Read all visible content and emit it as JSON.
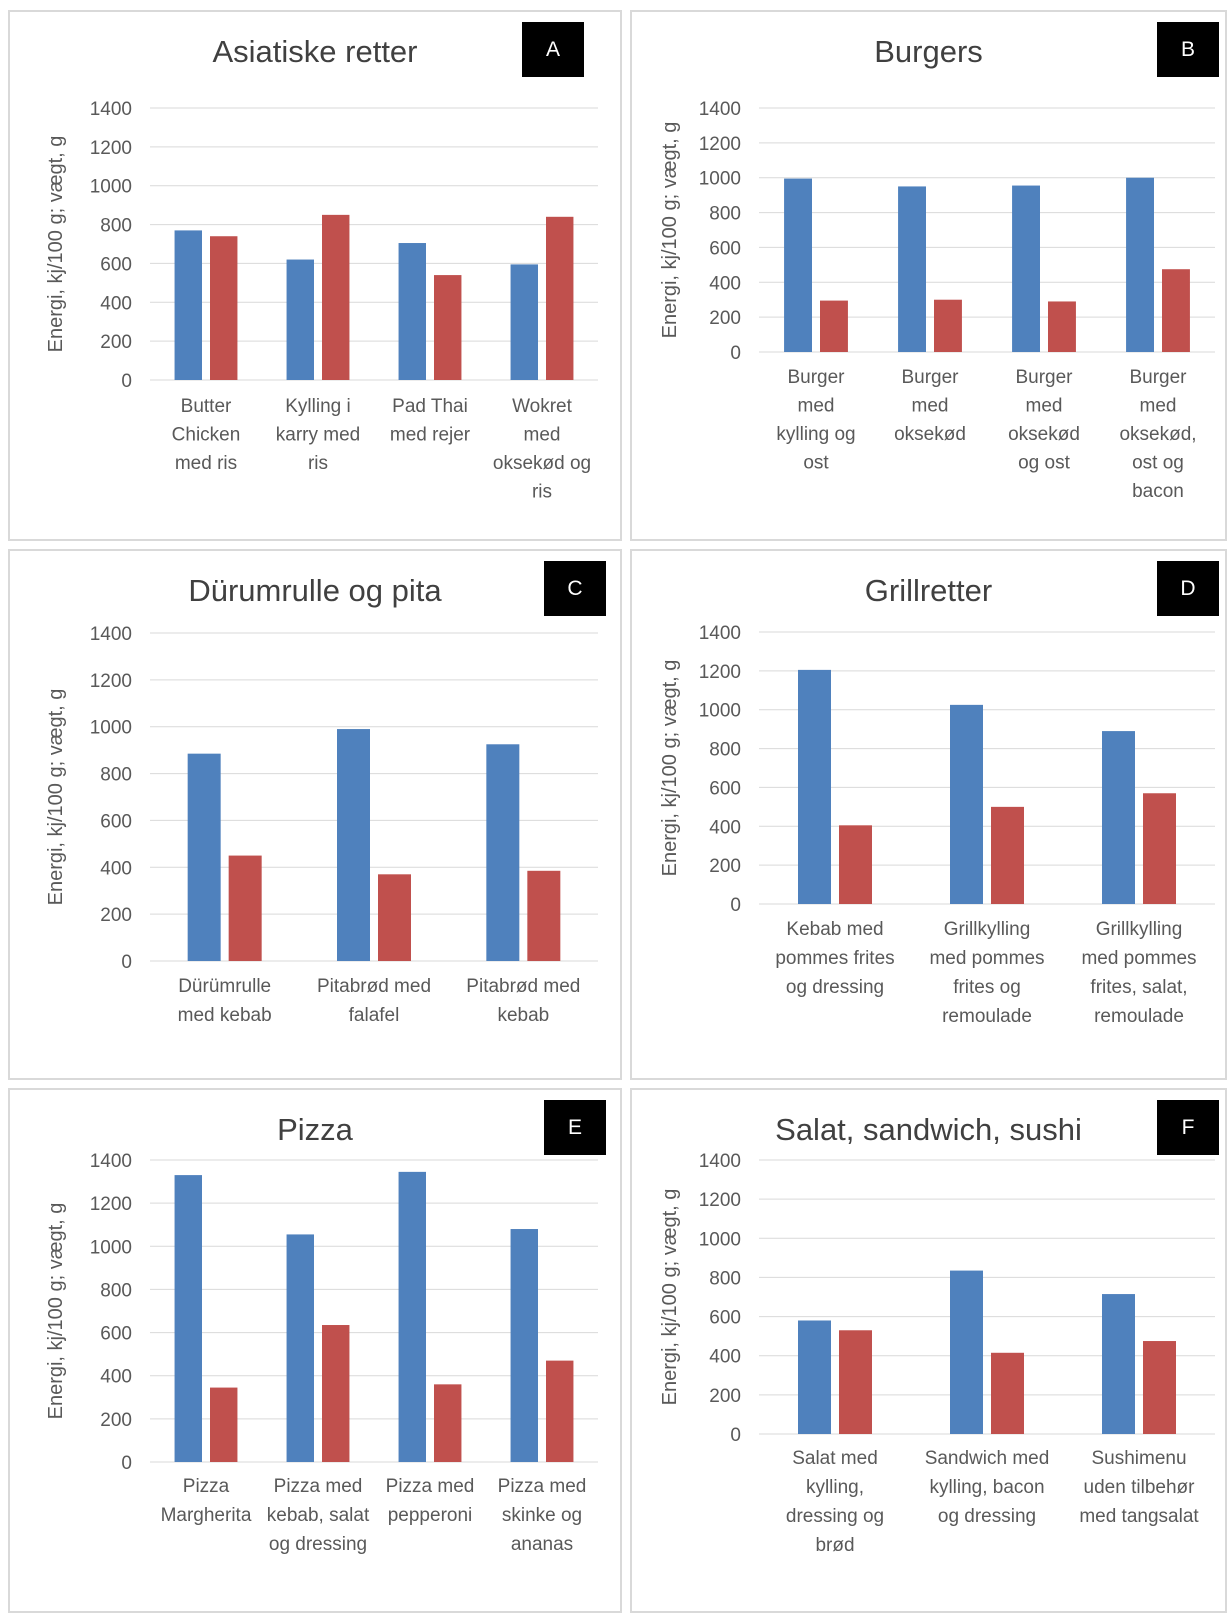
{
  "colors": {
    "series1": "#4f81bd",
    "series2": "#c0504d",
    "grid": "#d9d9d9",
    "text": "#595959",
    "title": "#404040"
  },
  "chart_data": [
    {
      "type": "bar",
      "title": "Asiatiske retter",
      "panel_label": "A",
      "ylabel": "Energi, kj/100 g; vægt, g",
      "ylim": [
        0,
        1400
      ],
      "yticks": [
        0,
        200,
        400,
        600,
        800,
        1000,
        1200,
        1400
      ],
      "grid": true,
      "categories": [
        [
          "Butter",
          "Chicken",
          "med ris"
        ],
        [
          "Kylling i",
          "karry med",
          "ris"
        ],
        [
          "Pad Thai",
          "med rejer"
        ],
        [
          "Wokret",
          "med",
          "oksekød og",
          "ris"
        ]
      ],
      "series": [
        {
          "values": [
            770,
            620,
            705,
            595
          ]
        },
        {
          "values": [
            740,
            850,
            540,
            840
          ]
        }
      ]
    },
    {
      "type": "bar",
      "title": "Burgers",
      "panel_label": "B",
      "ylabel": "Energi, kj/100 g; vægt, g",
      "ylim": [
        0,
        1400
      ],
      "yticks": [
        0,
        200,
        400,
        600,
        800,
        1000,
        1200,
        1400
      ],
      "grid": true,
      "categories": [
        [
          "Burger",
          "med",
          "kylling og",
          "ost"
        ],
        [
          "Burger",
          "med",
          "oksekød"
        ],
        [
          "Burger",
          "med",
          "oksekød",
          "og ost"
        ],
        [
          "Burger",
          "med",
          "oksekød,",
          "ost og",
          "bacon"
        ]
      ],
      "series": [
        {
          "values": [
            995,
            950,
            955,
            1000
          ]
        },
        {
          "values": [
            295,
            300,
            290,
            475
          ]
        }
      ]
    },
    {
      "type": "bar",
      "title": "Dürumrulle og pita",
      "panel_label": "C",
      "ylabel": "Energi, kj/100 g; vægt, g",
      "ylim": [
        0,
        1400
      ],
      "yticks": [
        0,
        200,
        400,
        600,
        800,
        1000,
        1200,
        1400
      ],
      "grid": true,
      "categories": [
        [
          "Dürümrulle",
          "med kebab"
        ],
        [
          "Pitabrød med",
          "falafel"
        ],
        [
          "Pitabrød med",
          "kebab"
        ]
      ],
      "series": [
        {
          "values": [
            885,
            990,
            925
          ]
        },
        {
          "values": [
            450,
            370,
            385
          ]
        }
      ]
    },
    {
      "type": "bar",
      "title": "Grillretter",
      "panel_label": "D",
      "ylabel": "Energi, kj/100 g; vægt, g",
      "ylim": [
        0,
        1400
      ],
      "yticks": [
        0,
        200,
        400,
        600,
        800,
        1000,
        1200,
        1400
      ],
      "grid": true,
      "categories": [
        [
          "Kebab med",
          "pommes frites",
          "og dressing"
        ],
        [
          "Grillkylling",
          "med pommes",
          "frites og",
          "remoulade"
        ],
        [
          "Grillkylling",
          "med pommes",
          "frites, salat,",
          "remoulade"
        ]
      ],
      "series": [
        {
          "values": [
            1205,
            1025,
            890
          ]
        },
        {
          "values": [
            405,
            500,
            570
          ]
        }
      ]
    },
    {
      "type": "bar",
      "title": "Pizza",
      "panel_label": "E",
      "ylabel": "Energi, kj/100 g; vægt, g",
      "ylim": [
        0,
        1400
      ],
      "yticks": [
        0,
        200,
        400,
        600,
        800,
        1000,
        1200,
        1400
      ],
      "grid": true,
      "categories": [
        [
          "Pizza",
          "Margherita"
        ],
        [
          "Pizza med",
          "kebab, salat",
          "og dressing"
        ],
        [
          "Pizza med",
          "pepperoni"
        ],
        [
          "Pizza med",
          "skinke og",
          "ananas"
        ]
      ],
      "series": [
        {
          "values": [
            1330,
            1055,
            1345,
            1080
          ]
        },
        {
          "values": [
            345,
            635,
            360,
            470
          ]
        }
      ]
    },
    {
      "type": "bar",
      "title": "Salat, sandwich, sushi",
      "panel_label": "F",
      "ylabel": "Energi, kj/100 g; vægt, g",
      "ylim": [
        0,
        1400
      ],
      "yticks": [
        0,
        200,
        400,
        600,
        800,
        1000,
        1200,
        1400
      ],
      "grid": true,
      "categories": [
        [
          "Salat med",
          "kylling,",
          "dressing og",
          "brød"
        ],
        [
          "Sandwich med",
          "kylling, bacon",
          "og dressing"
        ],
        [
          "Sushimenu",
          "uden tilbehør",
          "med tangsalat"
        ]
      ],
      "series": [
        {
          "values": [
            580,
            835,
            715
          ]
        },
        {
          "values": [
            530,
            415,
            475
          ]
        }
      ]
    }
  ]
}
